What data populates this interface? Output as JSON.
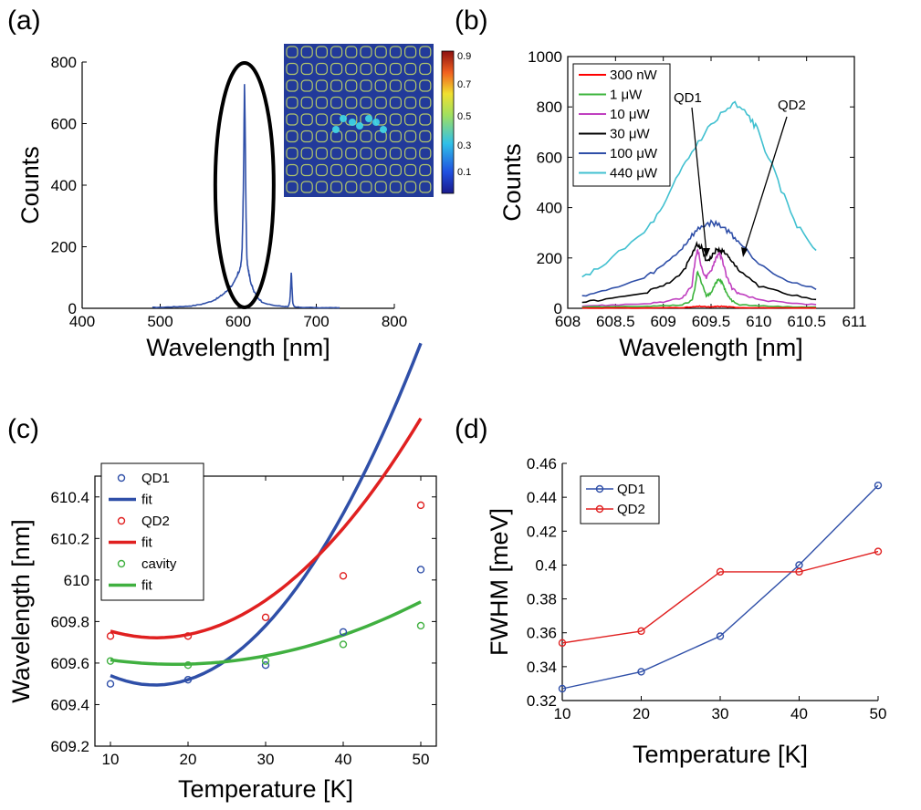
{
  "figure_title": "",
  "chart_data": [
    {
      "panel": "(a)",
      "type": "line",
      "xlabel": "Wavelength [nm]",
      "ylabel": "Counts",
      "xlim": [
        400,
        800
      ],
      "ylim": [
        0,
        800
      ],
      "xticks": [
        400,
        500,
        600,
        700,
        800
      ],
      "yticks": [
        0,
        200,
        400,
        600,
        800
      ],
      "color": "#2f4fa8",
      "series": [
        {
          "x": [
            490,
            500,
            510,
            520,
            530,
            540,
            550,
            560,
            570,
            575,
            580,
            585,
            590,
            595,
            598,
            600,
            602,
            604,
            605,
            606,
            607,
            608,
            609,
            610,
            611,
            612,
            613,
            614,
            616,
            618,
            620,
            625,
            630,
            640,
            650,
            660,
            664,
            666,
            667,
            668,
            669,
            670,
            672,
            676,
            680,
            690,
            700,
            710,
            720,
            730
          ],
          "y": [
            3,
            3,
            4,
            5,
            6,
            8,
            12,
            18,
            28,
            35,
            45,
            55,
            70,
            85,
            100,
            115,
            125,
            150,
            200,
            300,
            480,
            725,
            560,
            300,
            170,
            140,
            125,
            110,
            85,
            70,
            55,
            35,
            22,
            12,
            8,
            6,
            5,
            20,
            60,
            115,
            60,
            15,
            5,
            4,
            3,
            3,
            2,
            2,
            2,
            2
          ]
        }
      ],
      "annotation": "ellipse around the peak near 608 nm",
      "inset": {
        "description": "field intensity map of photonic crystal cavity",
        "colorbar_ticks": [
          "0.9",
          "0.7",
          "0.5",
          "0.3",
          "0.1"
        ],
        "colormap": "jet"
      }
    },
    {
      "panel": "(b)",
      "type": "line",
      "xlabel": "Wavelength [nm]",
      "ylabel": "Counts",
      "xlim": [
        608,
        611
      ],
      "ylim": [
        0,
        1000
      ],
      "xticks": [
        608,
        608.5,
        609,
        609.5,
        610,
        610.5,
        611
      ],
      "yticks": [
        0,
        200,
        400,
        600,
        800,
        1000
      ],
      "legend_position": "top-left",
      "series": [
        {
          "name": "300 nW",
          "color": "#ff0000",
          "x": [
            608.15,
            608.4,
            608.8,
            609.0,
            609.2,
            609.3,
            609.38,
            609.45,
            609.5,
            609.55,
            609.62,
            609.7,
            609.8,
            610.0,
            610.3,
            610.6
          ],
          "y": [
            1,
            1,
            1,
            2,
            3,
            5,
            8,
            6,
            5,
            7,
            8,
            5,
            3,
            2,
            1,
            1
          ]
        },
        {
          "name": "1 μW",
          "color": "#3cb43c",
          "x": [
            608.15,
            608.4,
            608.8,
            609.0,
            609.2,
            609.3,
            609.33,
            609.36,
            609.4,
            609.45,
            609.5,
            609.55,
            609.58,
            609.62,
            609.66,
            609.72,
            609.8,
            610.0,
            610.3,
            610.6
          ],
          "y": [
            5,
            6,
            8,
            10,
            14,
            30,
            80,
            150,
            100,
            50,
            60,
            100,
            120,
            100,
            60,
            30,
            15,
            10,
            6,
            5
          ]
        },
        {
          "name": "10 μW",
          "color": "#c040c0",
          "x": [
            608.15,
            608.4,
            608.8,
            609.0,
            609.2,
            609.3,
            609.33,
            609.36,
            609.4,
            609.45,
            609.5,
            609.55,
            609.58,
            609.62,
            609.66,
            609.72,
            609.8,
            610.0,
            610.3,
            610.6
          ],
          "y": [
            10,
            12,
            18,
            25,
            40,
            90,
            180,
            240,
            160,
            120,
            150,
            200,
            220,
            190,
            130,
            80,
            55,
            35,
            20,
            15
          ]
        },
        {
          "name": "30 μW",
          "color": "#000000",
          "x": [
            608.15,
            608.4,
            608.8,
            609.0,
            609.2,
            609.3,
            609.35,
            609.4,
            609.45,
            609.5,
            609.55,
            609.6,
            609.65,
            609.7,
            609.8,
            610.0,
            610.3,
            610.6
          ],
          "y": [
            25,
            35,
            60,
            90,
            140,
            210,
            260,
            240,
            190,
            200,
            230,
            230,
            220,
            190,
            150,
            90,
            55,
            35
          ]
        },
        {
          "name": "100 μW",
          "color": "#2f4fa8",
          "x": [
            608.15,
            608.4,
            608.8,
            609.0,
            609.2,
            609.3,
            609.4,
            609.5,
            609.6,
            609.7,
            609.8,
            610.0,
            610.3,
            610.6
          ],
          "y": [
            50,
            70,
            120,
            170,
            240,
            290,
            325,
            340,
            330,
            300,
            260,
            180,
            110,
            75
          ]
        },
        {
          "name": "440 μW",
          "color": "#40c0d0",
          "x": [
            608.15,
            608.4,
            608.8,
            609.0,
            609.2,
            609.4,
            609.6,
            609.75,
            609.9,
            610.0,
            610.2,
            610.4,
            610.6
          ],
          "y": [
            120,
            180,
            300,
            400,
            560,
            680,
            770,
            810,
            760,
            700,
            500,
            330,
            230
          ]
        }
      ],
      "annotations": [
        "QD1",
        "QD2"
      ]
    },
    {
      "panel": "(c)",
      "type": "scatter",
      "xlabel": "Temperature [K]",
      "ylabel": "Wavelength [nm]",
      "xlim": [
        8,
        52
      ],
      "ylim": [
        609.2,
        610.5
      ],
      "xticks": [
        10,
        20,
        30,
        40,
        50
      ],
      "yticks": [
        609.2,
        609.4,
        609.6,
        609.8,
        610,
        610.2,
        610.4
      ],
      "ytick_labels": [
        "609.2",
        "609.4",
        "609.6",
        "609.8",
        "610",
        "610.2",
        "610.4"
      ],
      "legend_position": "top-left",
      "legend": [
        "QD1",
        "fit",
        "QD2",
        "fit",
        "cavity",
        "fit"
      ],
      "series": [
        {
          "name": "QD1",
          "color": "#2f4fa8",
          "x": [
            10,
            20,
            30,
            40,
            50
          ],
          "y": [
            609.5,
            609.52,
            609.59,
            609.75,
            610.05
          ]
        },
        {
          "name": "QD2",
          "color": "#e02020",
          "x": [
            10,
            20,
            30,
            40,
            50
          ],
          "y": [
            609.73,
            609.73,
            609.82,
            610.02,
            610.36
          ]
        },
        {
          "name": "cavity",
          "color": "#40b040",
          "x": [
            10,
            20,
            30,
            40,
            50
          ],
          "y": [
            609.61,
            609.59,
            609.61,
            609.69,
            609.78
          ]
        }
      ],
      "fits": [
        {
          "color": "#2f4fa8",
          "quadratic": [
            0.0014,
            -0.044,
            609.84
          ]
        },
        {
          "color": "#e02020",
          "quadratic": [
            0.00091,
            -0.029,
            609.953
          ]
        },
        {
          "color": "#40b040",
          "quadratic": [
            0.0003,
            -0.011,
            609.695
          ]
        }
      ]
    },
    {
      "panel": "(d)",
      "type": "line",
      "xlabel": "Temperature [K]",
      "ylabel": "FWHM [meV]",
      "xlim": [
        10,
        50
      ],
      "ylim": [
        0.32,
        0.46
      ],
      "xticks": [
        10,
        20,
        30,
        40,
        50
      ],
      "yticks": [
        0.32,
        0.34,
        0.36,
        0.38,
        0.4,
        0.42,
        0.44,
        0.46
      ],
      "ytick_labels": [
        "0.32",
        "0.34",
        "0.36",
        "0.38",
        "0.4",
        "0.42",
        "0.44",
        "0.46"
      ],
      "legend_position": "top-left",
      "series": [
        {
          "name": "QD1",
          "color": "#2f4fa8",
          "x": [
            10,
            20,
            30,
            40,
            50
          ],
          "y": [
            0.327,
            0.337,
            0.358,
            0.4,
            0.447
          ]
        },
        {
          "name": "QD2",
          "color": "#e02020",
          "x": [
            10,
            20,
            30,
            40,
            50
          ],
          "y": [
            0.354,
            0.361,
            0.396,
            0.396,
            0.408
          ]
        }
      ]
    }
  ]
}
